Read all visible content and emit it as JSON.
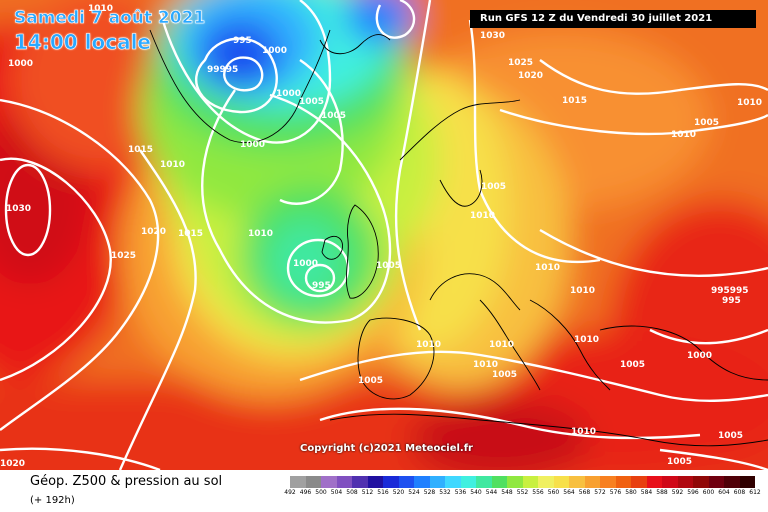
{
  "map": {
    "date_line": "Samedi 7 août 2021",
    "time_line": "14:00 locale",
    "run_info": "Run GFS 12 Z du Vendredi 30 juillet 2021",
    "copyright": "Copyright (c)2021 Meteociel.fr",
    "pressure_labels": [
      "1010",
      "995",
      "1000",
      "99995",
      "1000",
      "1005",
      "1005",
      "1000",
      "1015",
      "1010",
      "1030",
      "1020",
      "1015",
      "1010",
      "1025",
      "1010",
      "1000",
      "995",
      "1005",
      "1030",
      "1025",
      "1020",
      "1015",
      "1005",
      "1010",
      "1005",
      "1010",
      "1010",
      "995995",
      "995",
      "1010",
      "1010",
      "1010",
      "1005",
      "1000",
      "1010",
      "1005",
      "1005",
      "1005",
      "1020"
    ],
    "colors": {
      "high": "#e8101a",
      "low": "#1a2ad8",
      "mid": "#f7e04a",
      "isobar": "#ffffff",
      "banner": "#000000",
      "date_text": "#2aa8ff"
    }
  },
  "footer": {
    "title": "Géop. Z500 & pression au sol",
    "forecast_hour": "(+ 192h)"
  },
  "legend": {
    "ticks": [
      "492",
      "496",
      "500",
      "504",
      "508",
      "512",
      "516",
      "520",
      "524",
      "528",
      "532",
      "536",
      "540",
      "544",
      "548",
      "552",
      "556",
      "560",
      "564",
      "568",
      "572",
      "576",
      "580",
      "584",
      "588",
      "592",
      "596",
      "600",
      "604",
      "608",
      "612"
    ],
    "colors": [
      "#a0a0a0",
      "#8a8a8a",
      "#a070c8",
      "#8050c0",
      "#5030b0",
      "#2010a0",
      "#1a2ad8",
      "#1e50f0",
      "#2080ff",
      "#30b0ff",
      "#40d8ff",
      "#40f0e0",
      "#40e8a0",
      "#50e060",
      "#90e840",
      "#c8f040",
      "#f0f060",
      "#f7e04a",
      "#f8c040",
      "#f8a030",
      "#f88020",
      "#f06010",
      "#e84010",
      "#e8101a",
      "#d00818",
      "#b00810",
      "#900808",
      "#700010",
      "#500008",
      "#300000"
    ]
  }
}
